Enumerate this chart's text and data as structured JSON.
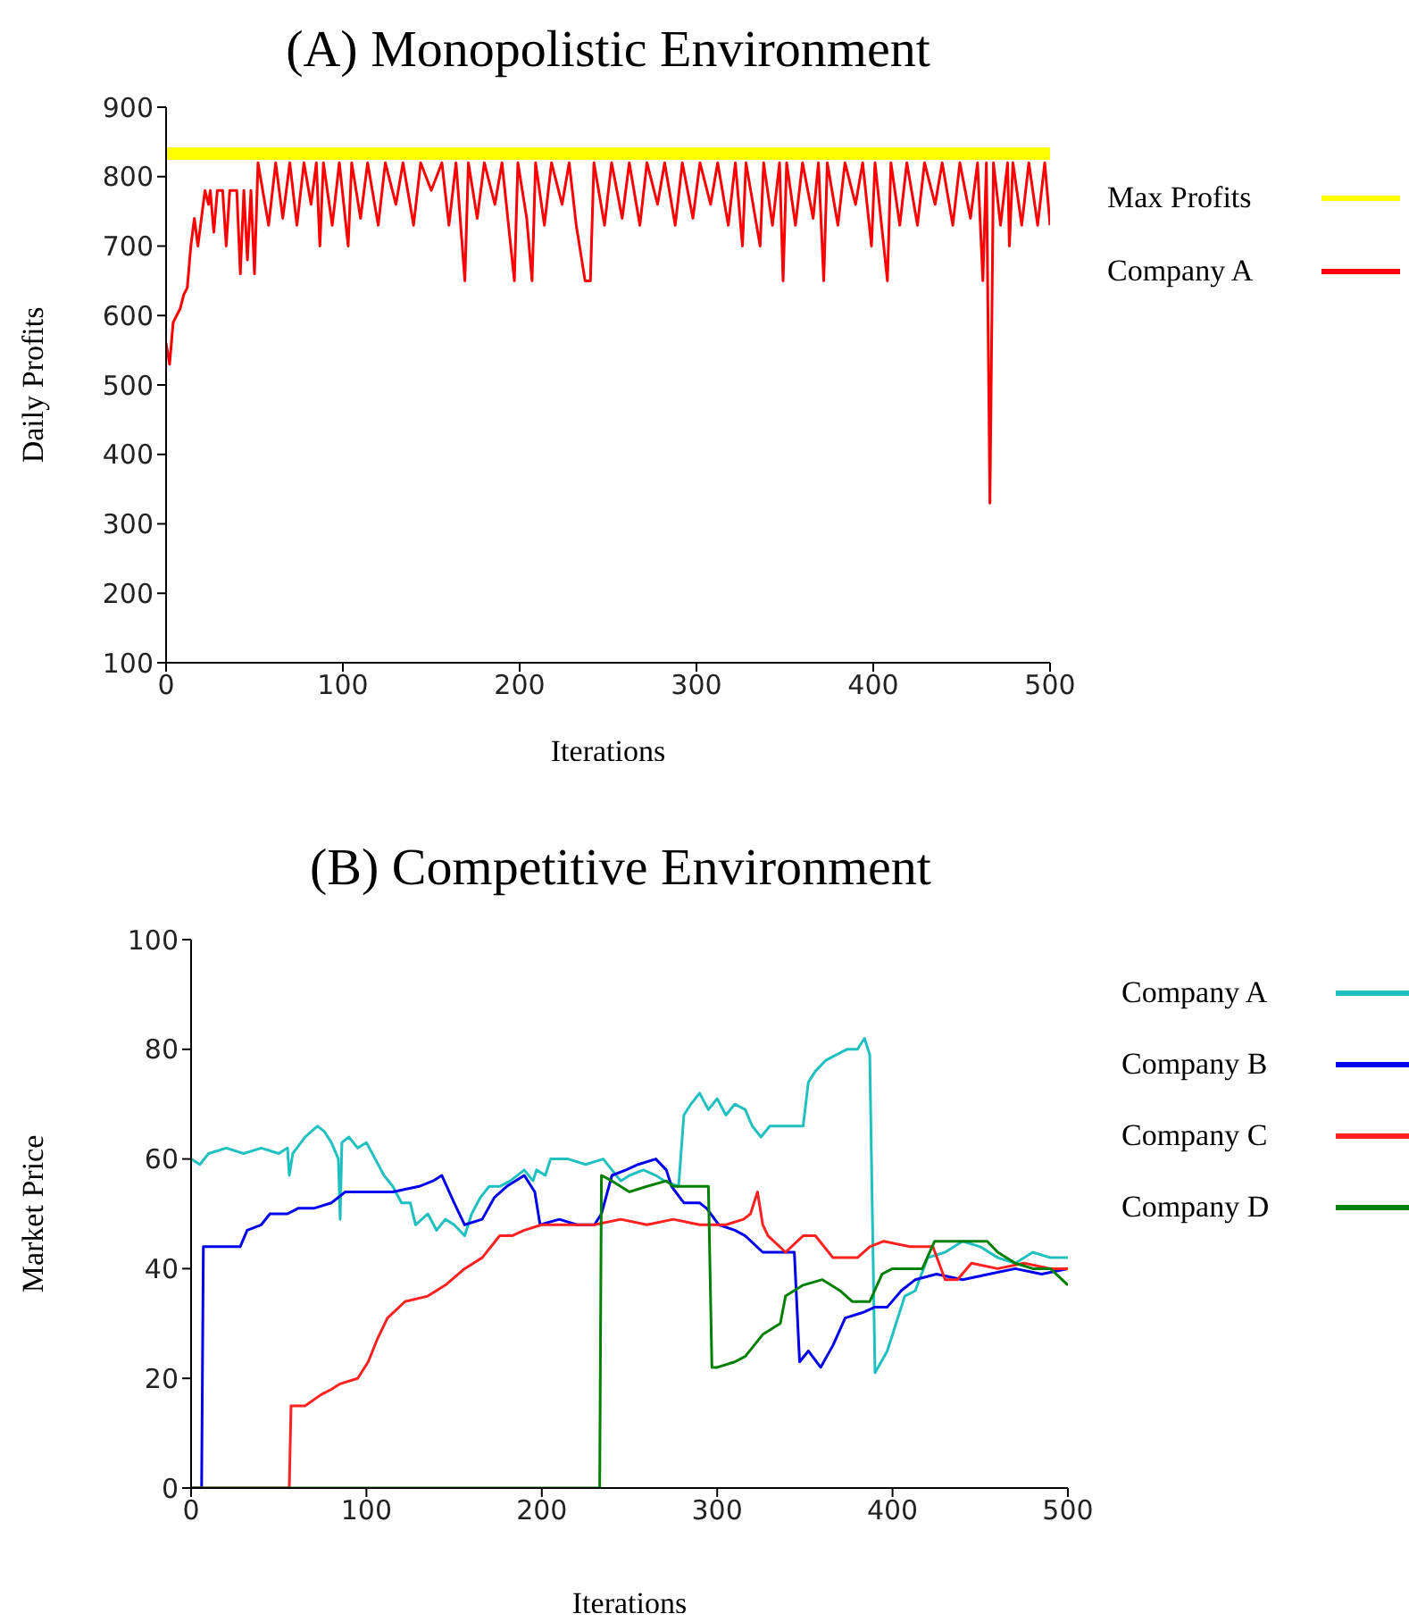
{
  "chart_data": [
    {
      "type": "line",
      "title": "(A) Monopolistic Environment",
      "xlabel": "Iterations",
      "ylabel": "Daily Profits",
      "xlim": [
        0,
        500
      ],
      "xticks": [
        0,
        100,
        200,
        300,
        400,
        500
      ],
      "ylim": [
        100,
        900
      ],
      "yticks": [
        100,
        200,
        300,
        400,
        500,
        600,
        700,
        800,
        900
      ],
      "grid": false,
      "legend": "top right",
      "series": [
        {
          "name": "Max Profits",
          "color": "#ffff00",
          "x": [
            0,
            500
          ],
          "values": [
            833,
            833
          ]
        },
        {
          "name": "Company A",
          "color": "#ff0000",
          "x": [
            0,
            2,
            4,
            6,
            8,
            10,
            12,
            14,
            16,
            18,
            20,
            22,
            24,
            25,
            27,
            29,
            32,
            34,
            36,
            40,
            42,
            44,
            46,
            48,
            50,
            52,
            58,
            62,
            66,
            70,
            74,
            78,
            82,
            85,
            87,
            89,
            94,
            98,
            103,
            105,
            110,
            114,
            120,
            124,
            130,
            134,
            140,
            144,
            150,
            156,
            160,
            164,
            169,
            171,
            176,
            180,
            186,
            190,
            197,
            199,
            204,
            207,
            209,
            214,
            218,
            224,
            228,
            232,
            237,
            240,
            242,
            248,
            252,
            258,
            262,
            268,
            272,
            278,
            282,
            288,
            292,
            298,
            302,
            308,
            312,
            318,
            322,
            326,
            328,
            336,
            338,
            343,
            347,
            349,
            351,
            356,
            360,
            366,
            369,
            372,
            374,
            380,
            384,
            390,
            394,
            399,
            401,
            408,
            410,
            415,
            419,
            425,
            429,
            435,
            439,
            445,
            449,
            455,
            459,
            462,
            464,
            466,
            468,
            472,
            476,
            477,
            479,
            484,
            488,
            493,
            497,
            500
          ],
          "values": [
            560,
            530,
            590,
            600,
            610,
            630,
            640,
            700,
            740,
            700,
            740,
            780,
            760,
            780,
            720,
            780,
            780,
            700,
            780,
            780,
            660,
            780,
            680,
            780,
            660,
            820,
            730,
            820,
            740,
            820,
            730,
            820,
            760,
            820,
            700,
            820,
            730,
            820,
            700,
            820,
            740,
            820,
            730,
            820,
            760,
            820,
            730,
            820,
            780,
            820,
            730,
            820,
            650,
            820,
            740,
            820,
            760,
            820,
            650,
            820,
            740,
            650,
            820,
            730,
            820,
            760,
            820,
            730,
            650,
            650,
            820,
            730,
            820,
            740,
            820,
            730,
            820,
            760,
            820,
            730,
            820,
            740,
            820,
            760,
            820,
            730,
            820,
            700,
            820,
            700,
            820,
            730,
            820,
            650,
            820,
            730,
            820,
            740,
            820,
            650,
            820,
            730,
            820,
            760,
            820,
            700,
            820,
            650,
            820,
            730,
            820,
            730,
            820,
            760,
            820,
            730,
            820,
            740,
            820,
            650,
            820,
            330,
            820,
            730,
            820,
            700,
            820,
            730,
            820,
            730,
            820,
            730
          ]
        }
      ]
    },
    {
      "type": "line",
      "title": "(B) Competitive Environment",
      "xlabel": "Iterations",
      "ylabel": "Market Price",
      "xlim": [
        0,
        500
      ],
      "xticks": [
        0,
        100,
        200,
        300,
        400,
        500
      ],
      "ylim": [
        0,
        100
      ],
      "yticks": [
        0,
        20,
        40,
        60,
        80,
        100
      ],
      "grid": false,
      "legend": "top right",
      "series": [
        {
          "name": "Company A",
          "color": "#20c0c0",
          "x": [
            0,
            5,
            10,
            20,
            30,
            40,
            50,
            55,
            56,
            58,
            65,
            72,
            76,
            80,
            84,
            85,
            86,
            90,
            95,
            100,
            105,
            110,
            115,
            120,
            125,
            128,
            135,
            140,
            145,
            150,
            156,
            160,
            165,
            170,
            176,
            182,
            190,
            195,
            197,
            202,
            205,
            215,
            225,
            235,
            240,
            245,
            250,
            258,
            265,
            270,
            278,
            281,
            285,
            290,
            295,
            300,
            305,
            310,
            316,
            320,
            325,
            330,
            340,
            349,
            352,
            356,
            362,
            368,
            374,
            380,
            384,
            387,
            390,
            397,
            402,
            407,
            413,
            420,
            430,
            440,
            450,
            460,
            470,
            480,
            490,
            500
          ],
          "values": [
            60,
            59,
            61,
            62,
            61,
            62,
            61,
            62,
            57,
            61,
            64,
            66,
            65,
            63,
            60,
            49,
            63,
            64,
            62,
            63,
            60,
            57,
            55,
            52,
            52,
            48,
            50,
            47,
            49,
            48,
            46,
            50,
            53,
            55,
            55,
            56,
            58,
            56,
            58,
            57,
            60,
            60,
            59,
            60,
            58,
            56,
            57,
            58,
            57,
            56,
            55,
            68,
            70,
            72,
            69,
            71,
            68,
            70,
            69,
            66,
            64,
            66,
            66,
            66,
            74,
            76,
            78,
            79,
            80,
            80,
            82,
            79,
            21,
            25,
            30,
            35,
            36,
            42,
            43,
            45,
            44,
            42,
            41,
            43,
            42,
            42
          ]
        },
        {
          "name": "Company B",
          "color": "#0000ee",
          "x": [
            0,
            6,
            7,
            20,
            28,
            32,
            40,
            45,
            55,
            61,
            70,
            80,
            88,
            100,
            115,
            130,
            138,
            143,
            150,
            156,
            166,
            173,
            180,
            190,
            196,
            199,
            210,
            220,
            230,
            234,
            240,
            248,
            255,
            265,
            271,
            274,
            281,
            290,
            294,
            301,
            310,
            316,
            326,
            335,
            344,
            347,
            352,
            359,
            366,
            373,
            383,
            390,
            397,
            405,
            413,
            425,
            440,
            455,
            470,
            485,
            500
          ],
          "values": [
            0,
            0,
            44,
            44,
            44,
            47,
            48,
            50,
            50,
            51,
            51,
            52,
            54,
            54,
            54,
            55,
            56,
            57,
            52,
            48,
            49,
            53,
            55,
            57,
            54,
            48,
            49,
            48,
            48,
            50,
            57,
            58,
            59,
            60,
            58,
            55,
            52,
            52,
            51,
            48,
            47,
            46,
            43,
            43,
            43,
            23,
            25,
            22,
            26,
            31,
            32,
            33,
            33,
            36,
            38,
            39,
            38,
            39,
            40,
            39,
            40
          ]
        },
        {
          "name": "Company C",
          "color": "#ff2020",
          "x": [
            0,
            56,
            57,
            65,
            74,
            80,
            85,
            95,
            101,
            106,
            112,
            122,
            135,
            145,
            156,
            166,
            176,
            183,
            190,
            200,
            215,
            230,
            245,
            260,
            275,
            290,
            305,
            315,
            319,
            323,
            326,
            329,
            339,
            349,
            356,
            366,
            380,
            387,
            395,
            410,
            423,
            430,
            437,
            445,
            460,
            475,
            490,
            500
          ],
          "values": [
            0,
            0,
            15,
            15,
            17,
            18,
            19,
            20,
            23,
            27,
            31,
            34,
            35,
            37,
            40,
            42,
            46,
            46,
            47,
            48,
            48,
            48,
            49,
            48,
            49,
            48,
            48,
            49,
            50,
            54,
            48,
            46,
            43,
            46,
            46,
            42,
            42,
            44,
            45,
            44,
            44,
            38,
            38,
            41,
            40,
            41,
            40,
            40
          ]
        },
        {
          "name": "Company D",
          "color": "#008000",
          "x": [
            0,
            233,
            234,
            240,
            250,
            260,
            271,
            275,
            295,
            297,
            300,
            310,
            316,
            326,
            336,
            339,
            349,
            360,
            370,
            377,
            387,
            394,
            400,
            417,
            424,
            440,
            454,
            460,
            470,
            480,
            490,
            500
          ],
          "values": [
            0,
            0,
            57,
            56,
            54,
            55,
            56,
            55,
            55,
            22,
            22,
            23,
            24,
            28,
            30,
            35,
            37,
            38,
            36,
            34,
            34,
            39,
            40,
            40,
            45,
            45,
            45,
            43,
            41,
            40,
            40,
            37
          ]
        }
      ]
    }
  ]
}
